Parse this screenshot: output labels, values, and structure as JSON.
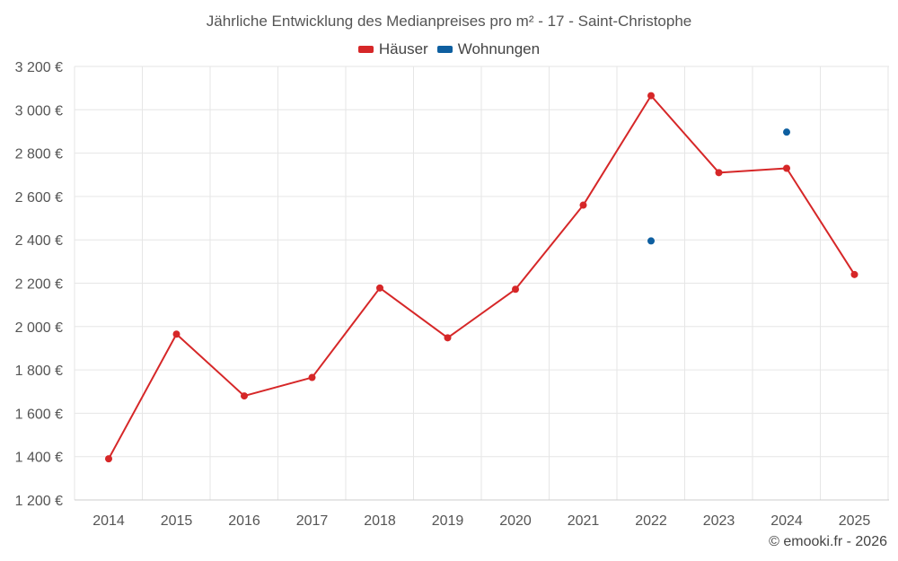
{
  "chart_data": {
    "type": "line",
    "title": "Jährliche Entwicklung des Medianpreises pro m² - 17 - Saint-Christophe",
    "categories": [
      "2014",
      "2015",
      "2016",
      "2017",
      "2018",
      "2019",
      "2020",
      "2021",
      "2022",
      "2023",
      "2024",
      "2025"
    ],
    "series": [
      {
        "name": "Häuser",
        "color": "#d62728",
        "values": [
          1390,
          1965,
          1680,
          1765,
          2178,
          1948,
          2172,
          2560,
          3065,
          2710,
          2730,
          2240
        ]
      },
      {
        "name": "Wohnungen",
        "color": "#0e5fa0",
        "values": [
          null,
          null,
          null,
          null,
          null,
          null,
          null,
          null,
          2395,
          null,
          2897,
          null
        ]
      }
    ],
    "y_ticks": [
      "1 200 €",
      "1 400 €",
      "1 600 €",
      "1 800 €",
      "2 000 €",
      "2 200 €",
      "2 400 €",
      "2 600 €",
      "2 800 €",
      "3 000 €",
      "3 200 €"
    ],
    "ylim": [
      1200,
      3200
    ],
    "xlabel": "",
    "ylabel": "",
    "legend_position": "top-center",
    "grid": true
  },
  "credit": "© emooki.fr - 2026"
}
